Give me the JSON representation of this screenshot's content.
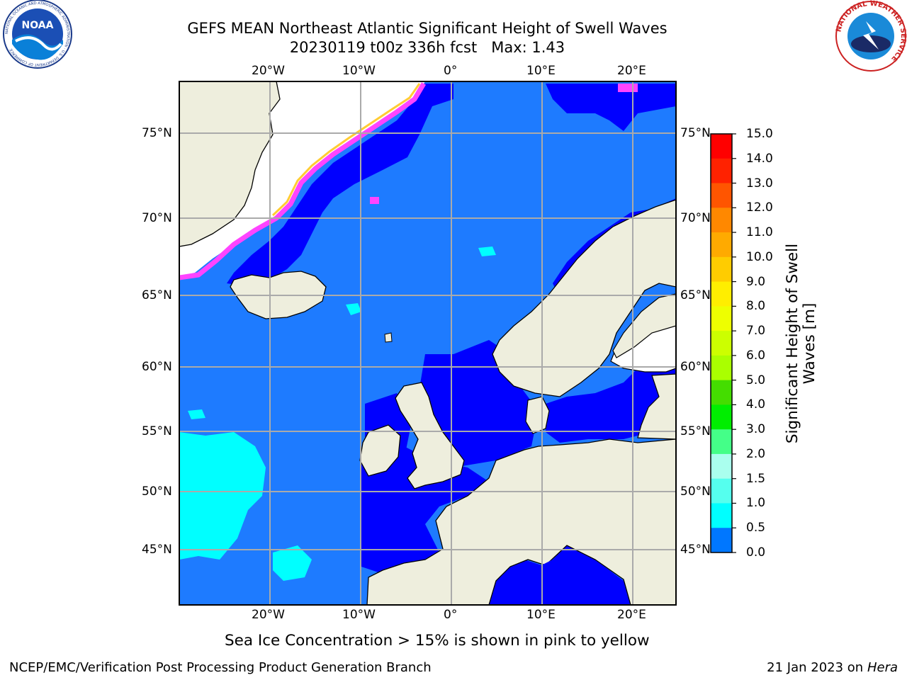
{
  "title": {
    "line1": "GEFS MEAN Northeast Atlantic Significant Height of Swell Waves",
    "line2": "20230119 t00z 336h fcst   Max: 1.43"
  },
  "logos": {
    "left_text": "NOAA",
    "left_ring": "NATIONAL OCEANIC AND ATMOSPHERIC ADMINISTRATION · U.S. DEPARTMENT OF COMMERCE",
    "right_ring": "NATIONAL WEATHER SERVICE"
  },
  "map": {
    "lon_labels": [
      "20°W",
      "10°W",
      "0°",
      "10°E",
      "20°E"
    ],
    "lat_labels_left": [
      "75°N",
      "70°N",
      "65°N",
      "60°N",
      "55°N",
      "50°N",
      "45°N"
    ],
    "lat_labels_right": [
      "75°N",
      "70°N",
      "65°N",
      "60°N",
      "55°N",
      "50°N",
      "45°N"
    ],
    "colors": {
      "ocean_low": "#0000ff",
      "ocean_mid": "#1e7bff",
      "ocean_cyan": "#00ffff",
      "land": "#eeeedd",
      "ice_pink": "#ff44ff",
      "ice_yellow": "#ffee00",
      "ice_orange": "#ffaa33",
      "grid": "#aaaaaa"
    }
  },
  "colorbar": {
    "title": "Significant Height of Swell Waves [m]",
    "ticks": [
      "15.0",
      "14.0",
      "13.0",
      "12.0",
      "11.0",
      "10.0",
      "9.0",
      "8.0",
      "7.0",
      "6.0",
      "5.0",
      "4.0",
      "3.0",
      "2.0",
      "1.5",
      "1.0",
      "0.5",
      "0.0"
    ],
    "colors": [
      "#ff0000",
      "#ff2200",
      "#ff5500",
      "#ff8800",
      "#ffaa00",
      "#ffcc00",
      "#ffee00",
      "#eeff00",
      "#ccff00",
      "#aaff00",
      "#44dd00",
      "#00ee00",
      "#44ff88",
      "#aaffee",
      "#55ffee",
      "#00ffff",
      "#0077ff",
      "#0000ff"
    ]
  },
  "caption": "Sea Ice Concentration > 15% is shown in pink to yellow",
  "footer": {
    "left": "NCEP/EMC/Verification Post Processing Product Generation Branch",
    "right_prefix": "21 Jan 2023 on ",
    "right_host": "Hera"
  }
}
